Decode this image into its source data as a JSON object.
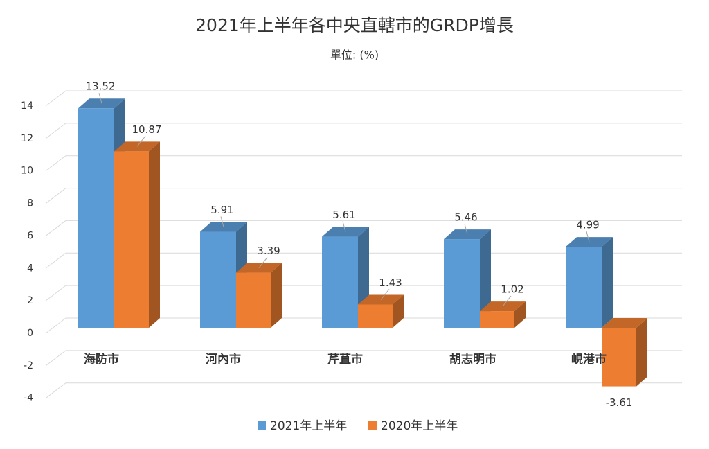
{
  "chart_data": {
    "type": "bar3d",
    "title": "2021年上半年各中央直轄市的GRDP增長",
    "subtitle": "單位: (%)",
    "categories": [
      "海防市",
      "河內市",
      "芹苴市",
      "胡志明市",
      "峴港市"
    ],
    "series": [
      {
        "name": "2021年上半年",
        "color": "#5b9bd5",
        "values": [
          13.52,
          5.91,
          5.61,
          5.46,
          4.99
        ]
      },
      {
        "name": "2020年上半年",
        "color": "#ed7d31",
        "values": [
          10.87,
          3.39,
          1.43,
          1.02,
          -3.61
        ]
      }
    ],
    "ylim": [
      -4,
      14
    ],
    "yticks": [
      -4,
      -2,
      0,
      2,
      4,
      6,
      8,
      10,
      12,
      14
    ],
    "grid": true,
    "legend": "bottom"
  }
}
